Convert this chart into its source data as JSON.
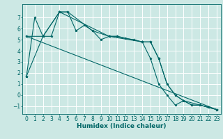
{
  "xlabel": "Humidex (Indice chaleur)",
  "bg_color": "#cce8e4",
  "grid_color": "#ffffff",
  "line_color": "#006666",
  "marker": "*",
  "xlim": [
    -0.5,
    23.5
  ],
  "ylim": [
    -1.7,
    8.2
  ],
  "yticks": [
    -1,
    0,
    1,
    2,
    3,
    4,
    5,
    6,
    7
  ],
  "xticks": [
    0,
    1,
    2,
    3,
    4,
    5,
    6,
    7,
    8,
    9,
    10,
    11,
    12,
    13,
    14,
    15,
    16,
    17,
    18,
    19,
    20,
    21,
    22,
    23
  ],
  "series": [
    {
      "x": [
        0,
        1,
        2,
        3,
        4,
        5,
        6,
        7,
        8,
        9,
        10,
        11,
        12,
        13,
        14,
        15,
        16,
        17,
        18,
        19,
        20,
        21,
        22,
        23
      ],
      "y": [
        1.7,
        7.0,
        5.3,
        5.3,
        7.5,
        7.5,
        5.8,
        6.3,
        5.8,
        5.0,
        5.3,
        5.3,
        5.1,
        5.0,
        4.8,
        3.3,
        1.0,
        0.0,
        -0.9,
        -0.5,
        -0.9,
        -0.9,
        -1.1,
        -1.3
      ]
    },
    {
      "x": [
        0,
        2,
        4,
        5,
        8,
        10,
        11,
        14,
        15,
        16,
        17,
        18,
        19,
        20,
        21,
        22,
        23
      ],
      "y": [
        5.3,
        5.3,
        7.5,
        7.5,
        5.8,
        5.3,
        5.3,
        4.8,
        4.8,
        3.3,
        1.0,
        0.0,
        -0.5,
        -0.9,
        -0.9,
        -1.1,
        -1.3
      ]
    },
    {
      "x": [
        0,
        23
      ],
      "y": [
        5.3,
        -1.3
      ]
    },
    {
      "x": [
        0,
        2,
        4,
        10,
        14,
        15,
        16,
        17,
        18,
        19,
        21,
        22,
        23
      ],
      "y": [
        1.7,
        5.3,
        7.5,
        5.3,
        4.8,
        4.8,
        3.3,
        1.0,
        0.0,
        -0.5,
        -0.9,
        -1.1,
        -1.3
      ]
    }
  ]
}
